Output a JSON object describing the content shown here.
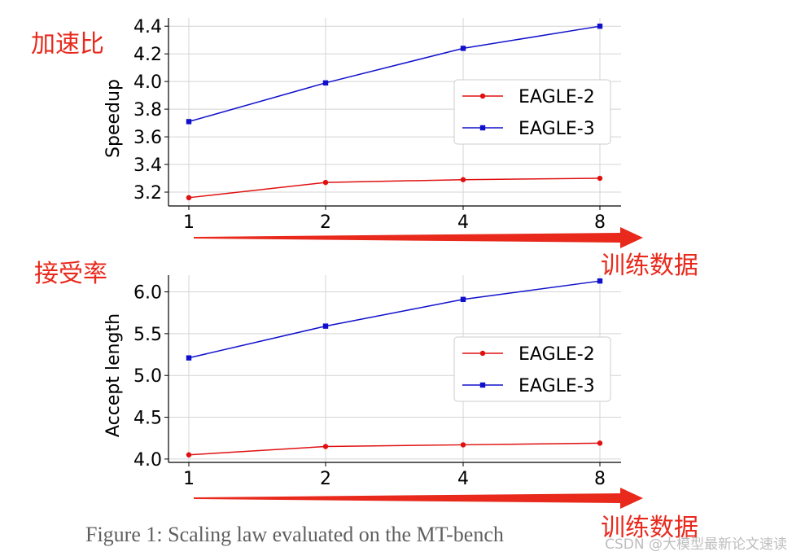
{
  "annotations": {
    "top_left": "加速比",
    "middle_left": "接受率",
    "arrow_label_top": "训练数据",
    "arrow_label_bottom": "训练数据",
    "arrow_color": "#e8291c"
  },
  "caption": "Figure 1: Scaling law evaluated on the MT-bench",
  "watermark": "CSDN @大模型最新论文速读",
  "chart_data": [
    {
      "type": "line",
      "title": "",
      "xlabel": "",
      "ylabel": "Speedup",
      "x": [
        1,
        2,
        4,
        8
      ],
      "xscale": "log2",
      "xticks": [
        "1",
        "2",
        "4",
        "8"
      ],
      "ylim": [
        3.1,
        4.46
      ],
      "yticks": [
        "3.2",
        "3.4",
        "3.6",
        "3.8",
        "4.0",
        "4.2",
        "4.4"
      ],
      "grid": true,
      "legend": "center-right",
      "series": [
        {
          "name": "EAGLE-2",
          "values": [
            3.16,
            3.27,
            3.29,
            3.3
          ],
          "color": "#e01010",
          "marker": "circle"
        },
        {
          "name": "EAGLE-3",
          "values": [
            3.71,
            3.99,
            4.24,
            4.4
          ],
          "color": "#1010cc",
          "marker": "square"
        }
      ]
    },
    {
      "type": "line",
      "title": "",
      "xlabel": "",
      "ylabel": "Accept length",
      "x": [
        1,
        2,
        4,
        8
      ],
      "xscale": "log2",
      "xticks": [
        "1",
        "2",
        "4",
        "8"
      ],
      "ylim": [
        3.96,
        6.2
      ],
      "yticks": [
        "4.0",
        "4.5",
        "5.0",
        "5.5",
        "6.0"
      ],
      "grid": true,
      "legend": "center-right",
      "series": [
        {
          "name": "EAGLE-2",
          "values": [
            4.05,
            4.15,
            4.17,
            4.19
          ],
          "color": "#e01010",
          "marker": "circle"
        },
        {
          "name": "EAGLE-3",
          "values": [
            5.21,
            5.59,
            5.91,
            6.13
          ],
          "color": "#1010cc",
          "marker": "square"
        }
      ]
    }
  ]
}
